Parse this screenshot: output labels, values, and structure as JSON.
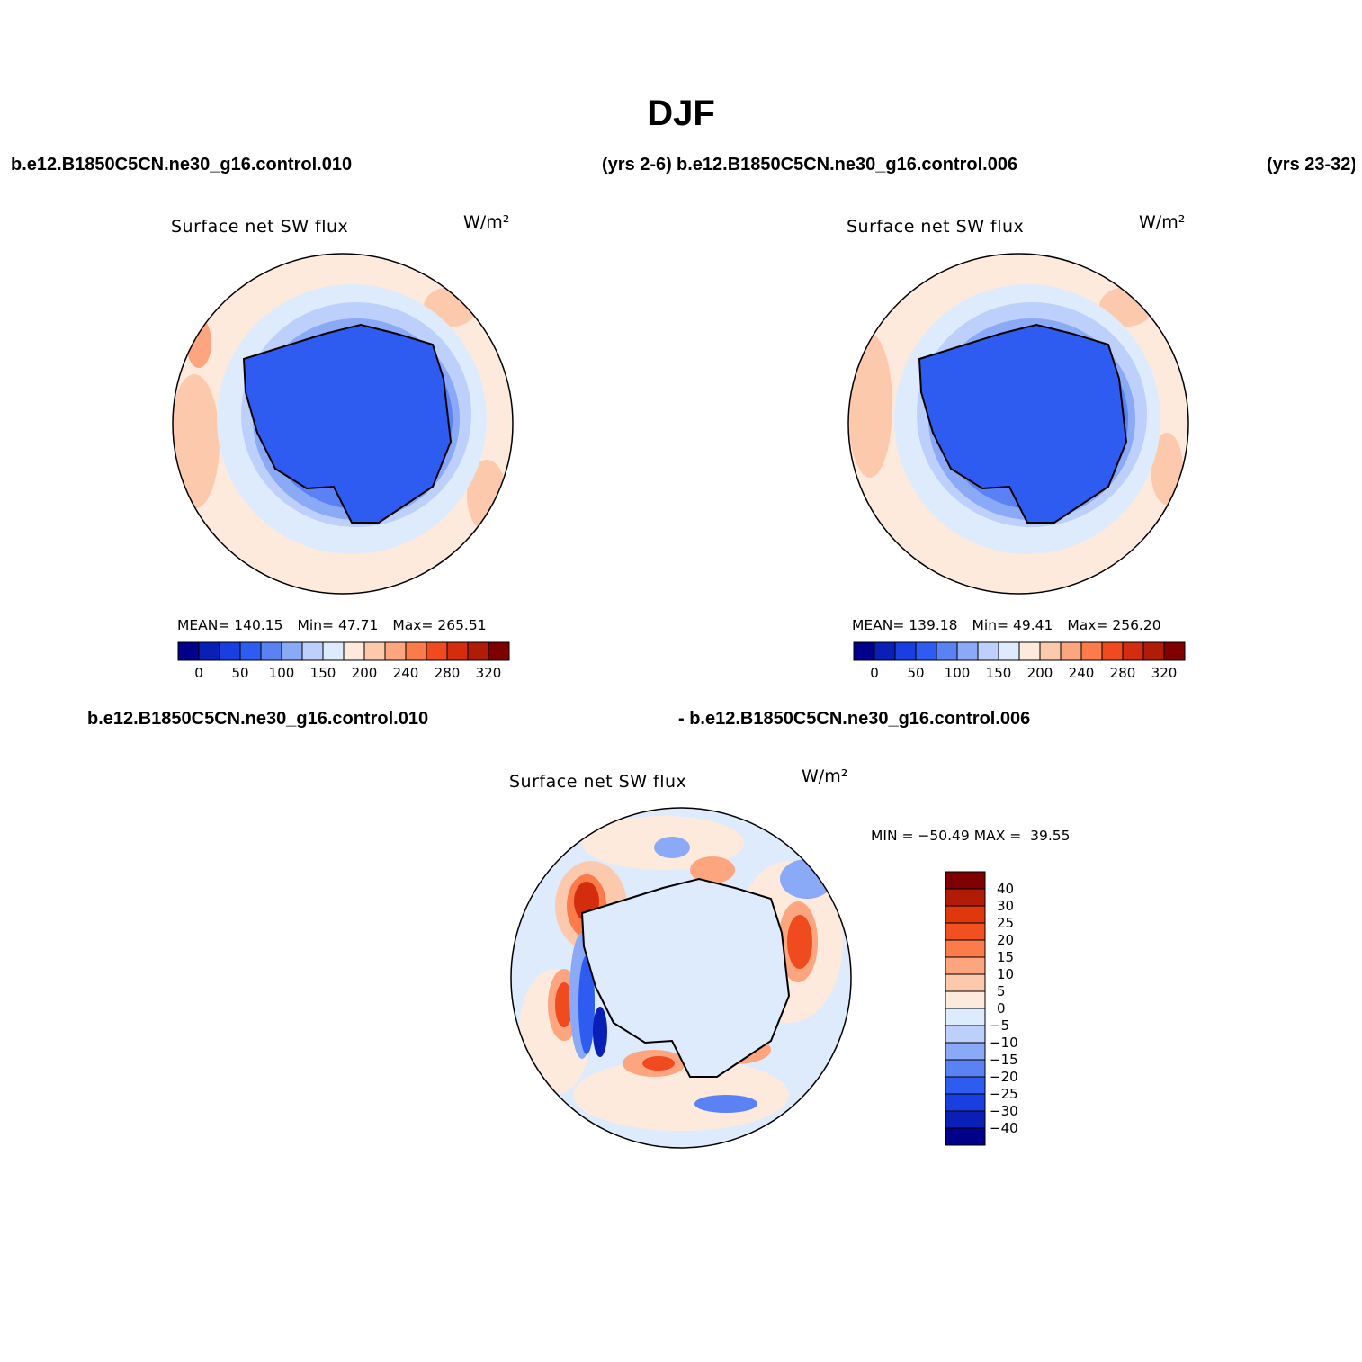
{
  "main_title": "DJF",
  "cases": {
    "case1": "b.e12.B1850C5CN.ne30_g16.control.010",
    "case1_years": "(yrs 2-6)",
    "case2": "b.e12.B1850C5CN.ne30_g16.control.006",
    "case2_years": "(yrs 23-32)",
    "diff_case1": "b.e12.B1850C5CN.ne30_g16.control.010",
    "diff_case2": "- b.e12.B1850C5CN.ne30_g16.control.006"
  },
  "variable_label": "Surface net SW flux",
  "units_label": "W/m²",
  "panel1": {
    "mean_label": "MEAN=",
    "mean": "140.15",
    "min_label": "Min=",
    "min": "47.71",
    "max_label": "Max=",
    "max": "265.51"
  },
  "panel2": {
    "mean_label": "MEAN=",
    "mean": "139.18",
    "min_label": "Min=",
    "min": "49.41",
    "max_label": "Max=",
    "max": "256.20"
  },
  "diff": {
    "min_label": "MIN =",
    "min": "−50.49",
    "max_label": "MAX =",
    "max": "39.55"
  },
  "colorbar_main": {
    "colors": [
      "#00008b",
      "#0a1fb5",
      "#1a3fe0",
      "#2e5cf0",
      "#5a82f5",
      "#8aaaf8",
      "#bcd0fb",
      "#deebfd",
      "#feeadc",
      "#fdc9ac",
      "#fca57f",
      "#fb7b4b",
      "#f04b1f",
      "#d42d0d",
      "#b01c06",
      "#7f0000"
    ],
    "tick_labels": [
      "0",
      "50",
      "100",
      "150",
      "200",
      "240",
      "280",
      "320"
    ]
  },
  "colorbar_diff": {
    "colors_top_to_bottom": [
      "#7f0000",
      "#b01c06",
      "#e0380d",
      "#f25020",
      "#fb7b4b",
      "#fca57f",
      "#fdc9ac",
      "#feeadc",
      "#deebfd",
      "#bcd0fb",
      "#8aaaf8",
      "#5a82f5",
      "#2e5cf0",
      "#1a3fe0",
      "#0a1fb5",
      "#00008b"
    ],
    "tick_labels": [
      "40",
      "30",
      "25",
      "20",
      "15",
      "10",
      "5",
      "0",
      "−5",
      "−10",
      "−15",
      "−20",
      "−25",
      "−30",
      "−40"
    ]
  },
  "map_colors": {
    "warm1": "#feeadc",
    "warm2": "#fdc9ac",
    "warm3": "#fca57f",
    "warm4": "#fb7b4b",
    "warm5": "#f04b1f",
    "warm6": "#d42d0d",
    "warm7": "#b01c06",
    "cool1": "#deebfd",
    "cool2": "#bcd0fb",
    "cool3": "#8aaaf8",
    "cool4": "#5a82f5",
    "cool5": "#2e5cf0",
    "cool6": "#1a3fe0",
    "cool7": "#0a1fb5"
  }
}
